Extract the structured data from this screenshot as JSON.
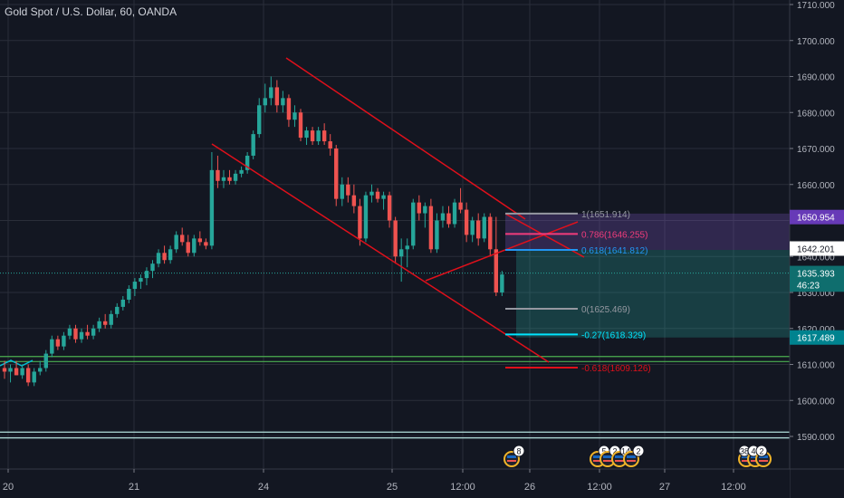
{
  "title": "Gold Spot / U.S. Dollar, 60, OANDA",
  "colors": {
    "background": "#131722",
    "grid": "#2a2e39",
    "up": "#26a69a",
    "down": "#ef5350",
    "channel": "#e0101b",
    "text": "#d1d4dc",
    "price_axis_text": "#b2b5be"
  },
  "chart_data": {
    "type": "candlestick",
    "y_ticks": [
      "1710.000",
      "1700.000",
      "1690.000",
      "1680.000",
      "1670.000",
      "1660.000",
      "1650.000",
      "1640.000",
      "1630.000",
      "1620.000",
      "1610.000",
      "1600.000",
      "1590.000"
    ],
    "x_ticks": [
      "20",
      "21",
      "24",
      "25",
      "12:00",
      "26",
      "12:00",
      "27",
      "12:00"
    ],
    "ylim": [
      1584,
      1712
    ],
    "fib_levels": [
      {
        "label": "1(1651.914)",
        "value": 1651.914,
        "color": "#9598a1"
      },
      {
        "label": "0.786(1646.255)",
        "value": 1646.255,
        "color": "#f23c7c"
      },
      {
        "label": "0.618(1641.812)",
        "value": 1641.812,
        "color": "#2196f3"
      },
      {
        "label": "0(1625.469)",
        "value": 1625.469,
        "color": "#9598a1"
      },
      {
        "label": "-0.27(1618.329)",
        "value": 1618.329,
        "color": "#00e5ff"
      },
      {
        "label": "-0.618(1609.126)",
        "value": 1609.126,
        "color": "#e0101b"
      }
    ],
    "price_badges": [
      {
        "label": "1650.954",
        "value": 1650.954,
        "bg": "#673ab7",
        "fg": "#ffffff"
      },
      {
        "label": "1642.201",
        "value": 1642.201,
        "bg": "#ffffff",
        "fg": "#131722"
      },
      {
        "label": "1635.393",
        "value": 1635.393,
        "bg": "#0f6e6e",
        "fg": "#ffffff"
      },
      {
        "label": "46:23",
        "value": 1632.2,
        "bg": "#0f6e6e",
        "fg": "#ffffff"
      },
      {
        "label": "1617.489",
        "value": 1617.489,
        "bg": "#00838f",
        "fg": "#ffffff"
      }
    ],
    "support_lines": [
      {
        "value": 1612.2,
        "color": "#4caf50"
      },
      {
        "value": 1610.8,
        "color": "#4caf50"
      },
      {
        "value": 1591.2,
        "color": "#b2dfdb"
      },
      {
        "value": 1589.6,
        "color": "#b2dfdb"
      }
    ],
    "event_markers": [
      {
        "count": "8"
      },
      {
        "count": "5"
      },
      {
        "count": "2"
      },
      {
        "count": "14"
      },
      {
        "count": "2"
      },
      {
        "count": "38"
      },
      {
        "count": "4"
      },
      {
        "count": "2"
      }
    ],
    "candles": [
      {
        "o": 1609,
        "h": 1611,
        "l": 1606,
        "c": 1608
      },
      {
        "o": 1608,
        "h": 1610,
        "l": 1605,
        "c": 1609
      },
      {
        "o": 1609,
        "h": 1611,
        "l": 1607,
        "c": 1607
      },
      {
        "o": 1607,
        "h": 1610,
        "l": 1606,
        "c": 1609
      },
      {
        "o": 1609,
        "h": 1610,
        "l": 1604,
        "c": 1605
      },
      {
        "o": 1605,
        "h": 1609,
        "l": 1604,
        "c": 1608
      },
      {
        "o": 1608,
        "h": 1611,
        "l": 1607,
        "c": 1609
      },
      {
        "o": 1609,
        "h": 1614,
        "l": 1608,
        "c": 1613
      },
      {
        "o": 1613,
        "h": 1618,
        "l": 1612,
        "c": 1617
      },
      {
        "o": 1617,
        "h": 1618,
        "l": 1614,
        "c": 1615
      },
      {
        "o": 1615,
        "h": 1619,
        "l": 1614,
        "c": 1618
      },
      {
        "o": 1618,
        "h": 1621,
        "l": 1617,
        "c": 1620
      },
      {
        "o": 1620,
        "h": 1621,
        "l": 1616,
        "c": 1617
      },
      {
        "o": 1617,
        "h": 1620,
        "l": 1616,
        "c": 1619
      },
      {
        "o": 1619,
        "h": 1621,
        "l": 1617,
        "c": 1618
      },
      {
        "o": 1618,
        "h": 1621,
        "l": 1617,
        "c": 1620
      },
      {
        "o": 1620,
        "h": 1623,
        "l": 1619,
        "c": 1622
      },
      {
        "o": 1622,
        "h": 1624,
        "l": 1620,
        "c": 1621
      },
      {
        "o": 1621,
        "h": 1625,
        "l": 1620,
        "c": 1624
      },
      {
        "o": 1624,
        "h": 1627,
        "l": 1623,
        "c": 1626
      },
      {
        "o": 1626,
        "h": 1629,
        "l": 1625,
        "c": 1628
      },
      {
        "o": 1628,
        "h": 1632,
        "l": 1627,
        "c": 1631
      },
      {
        "o": 1631,
        "h": 1634,
        "l": 1629,
        "c": 1633
      },
      {
        "o": 1633,
        "h": 1635,
        "l": 1631,
        "c": 1634
      },
      {
        "o": 1634,
        "h": 1637,
        "l": 1632,
        "c": 1636
      },
      {
        "o": 1636,
        "h": 1639,
        "l": 1634,
        "c": 1638
      },
      {
        "o": 1638,
        "h": 1642,
        "l": 1637,
        "c": 1641
      },
      {
        "o": 1641,
        "h": 1643,
        "l": 1638,
        "c": 1639
      },
      {
        "o": 1639,
        "h": 1643,
        "l": 1638,
        "c": 1642
      },
      {
        "o": 1642,
        "h": 1647,
        "l": 1641,
        "c": 1646
      },
      {
        "o": 1646,
        "h": 1648,
        "l": 1643,
        "c": 1644
      },
      {
        "o": 1644,
        "h": 1646,
        "l": 1640,
        "c": 1641
      },
      {
        "o": 1641,
        "h": 1646,
        "l": 1640,
        "c": 1645
      },
      {
        "o": 1645,
        "h": 1647,
        "l": 1643,
        "c": 1644
      },
      {
        "o": 1644,
        "h": 1645,
        "l": 1642,
        "c": 1643
      },
      {
        "o": 1643,
        "h": 1669,
        "l": 1642,
        "c": 1664
      },
      {
        "o": 1664,
        "h": 1668,
        "l": 1659,
        "c": 1661
      },
      {
        "o": 1661,
        "h": 1664,
        "l": 1659,
        "c": 1662
      },
      {
        "o": 1662,
        "h": 1664,
        "l": 1660,
        "c": 1661
      },
      {
        "o": 1661,
        "h": 1664,
        "l": 1660,
        "c": 1663
      },
      {
        "o": 1663,
        "h": 1665,
        "l": 1662,
        "c": 1664
      },
      {
        "o": 1664,
        "h": 1669,
        "l": 1663,
        "c": 1668
      },
      {
        "o": 1668,
        "h": 1675,
        "l": 1667,
        "c": 1674
      },
      {
        "o": 1674,
        "h": 1684,
        "l": 1673,
        "c": 1682
      },
      {
        "o": 1682,
        "h": 1688,
        "l": 1680,
        "c": 1684
      },
      {
        "o": 1684,
        "h": 1690,
        "l": 1682,
        "c": 1687
      },
      {
        "o": 1687,
        "h": 1689,
        "l": 1680,
        "c": 1682
      },
      {
        "o": 1682,
        "h": 1686,
        "l": 1680,
        "c": 1684
      },
      {
        "o": 1684,
        "h": 1685,
        "l": 1676,
        "c": 1678
      },
      {
        "o": 1678,
        "h": 1682,
        "l": 1676,
        "c": 1680
      },
      {
        "o": 1680,
        "h": 1681,
        "l": 1672,
        "c": 1673
      },
      {
        "o": 1673,
        "h": 1676,
        "l": 1671,
        "c": 1675
      },
      {
        "o": 1675,
        "h": 1676,
        "l": 1671,
        "c": 1672
      },
      {
        "o": 1672,
        "h": 1676,
        "l": 1671,
        "c": 1675
      },
      {
        "o": 1675,
        "h": 1677,
        "l": 1671,
        "c": 1672
      },
      {
        "o": 1672,
        "h": 1674,
        "l": 1668,
        "c": 1670
      },
      {
        "o": 1670,
        "h": 1671,
        "l": 1654,
        "c": 1656
      },
      {
        "o": 1656,
        "h": 1662,
        "l": 1654,
        "c": 1660
      },
      {
        "o": 1660,
        "h": 1662,
        "l": 1655,
        "c": 1657
      },
      {
        "o": 1657,
        "h": 1660,
        "l": 1652,
        "c": 1654
      },
      {
        "o": 1654,
        "h": 1656,
        "l": 1643,
        "c": 1645
      },
      {
        "o": 1645,
        "h": 1658,
        "l": 1644,
        "c": 1657
      },
      {
        "o": 1657,
        "h": 1660,
        "l": 1655,
        "c": 1658
      },
      {
        "o": 1658,
        "h": 1659,
        "l": 1655,
        "c": 1656
      },
      {
        "o": 1656,
        "h": 1658,
        "l": 1653,
        "c": 1657
      },
      {
        "o": 1657,
        "h": 1658,
        "l": 1648,
        "c": 1650
      },
      {
        "o": 1650,
        "h": 1651,
        "l": 1638,
        "c": 1640
      },
      {
        "o": 1640,
        "h": 1645,
        "l": 1633,
        "c": 1642
      },
      {
        "o": 1642,
        "h": 1645,
        "l": 1637,
        "c": 1643
      },
      {
        "o": 1643,
        "h": 1656,
        "l": 1642,
        "c": 1655
      },
      {
        "o": 1655,
        "h": 1657,
        "l": 1650,
        "c": 1652
      },
      {
        "o": 1652,
        "h": 1655,
        "l": 1648,
        "c": 1654
      },
      {
        "o": 1654,
        "h": 1656,
        "l": 1641,
        "c": 1642
      },
      {
        "o": 1642,
        "h": 1652,
        "l": 1641,
        "c": 1650
      },
      {
        "o": 1650,
        "h": 1654,
        "l": 1648,
        "c": 1652
      },
      {
        "o": 1652,
        "h": 1654,
        "l": 1648,
        "c": 1649
      },
      {
        "o": 1649,
        "h": 1656,
        "l": 1648,
        "c": 1655
      },
      {
        "o": 1655,
        "h": 1659,
        "l": 1652,
        "c": 1653
      },
      {
        "o": 1653,
        "h": 1655,
        "l": 1644,
        "c": 1646
      },
      {
        "o": 1646,
        "h": 1651,
        "l": 1644,
        "c": 1650
      },
      {
        "o": 1650,
        "h": 1652,
        "l": 1643,
        "c": 1645
      },
      {
        "o": 1645,
        "h": 1652,
        "l": 1644,
        "c": 1651
      },
      {
        "o": 1651,
        "h": 1652,
        "l": 1640,
        "c": 1642
      },
      {
        "o": 1642,
        "h": 1651,
        "l": 1629,
        "c": 1630
      },
      {
        "o": 1630,
        "h": 1636,
        "l": 1629,
        "c": 1635
      }
    ]
  }
}
